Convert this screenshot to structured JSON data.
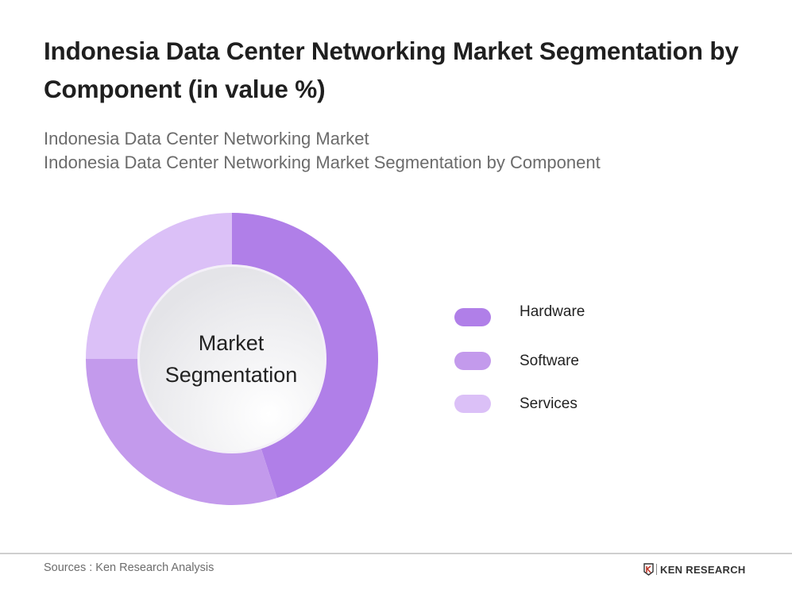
{
  "header": {
    "title": "Indonesia Data Center Networking Market Segmentation by Component (in value %)",
    "subtitle_line1": "Indonesia Data Center Networking Market",
    "subtitle_line2": "Indonesia Data Center Networking Market Segmentation by Component"
  },
  "center_label": {
    "line1": "Market",
    "line2": "Segmentation"
  },
  "legend": {
    "items": [
      {
        "label": "Hardware",
        "color": "#B07FE8"
      },
      {
        "label": "Software",
        "color": "#C39AEC"
      },
      {
        "label": "Services",
        "color": "#DBC0F7"
      }
    ]
  },
  "footer": {
    "source": "Sources : Ken Research Analysis",
    "brand": "KEN RESEARCH"
  },
  "chart_data": {
    "type": "pie",
    "variant": "donut",
    "title": "Indonesia Data Center Networking Market Segmentation by Component (in value %)",
    "center_text": "Market Segmentation",
    "categories": [
      "Hardware",
      "Software",
      "Services"
    ],
    "values": [
      45,
      30,
      25
    ],
    "colors": [
      "#B07FE8",
      "#C39AEC",
      "#DBC0F7"
    ],
    "start_angle": "12 o'clock, clockwise",
    "legend_position": "right",
    "data_labels": false
  }
}
